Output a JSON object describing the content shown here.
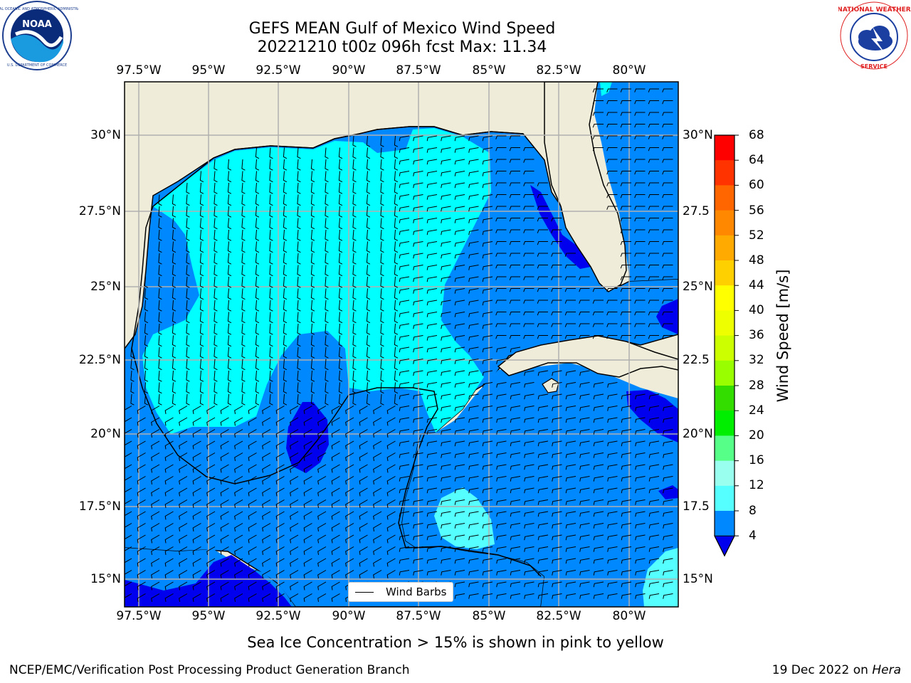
{
  "title_line1": "GEFS MEAN Gulf of Mexico Wind Speed",
  "title_line2": "20221210 t00z 096h fcst   Max: 11.34",
  "lon_labels": [
    "97.5°W",
    "95°W",
    "92.5°W",
    "90°W",
    "87.5°W",
    "85°W",
    "82.5°W",
    "80°W"
  ],
  "lat_labels_left": [
    "30°N",
    "27.5°N",
    "25°N",
    "22.5°N",
    "20°N",
    "17.5°N",
    "15°N"
  ],
  "lat_labels_right": [
    "30°N",
    "27.5",
    "25°N",
    "22.5",
    "20°N",
    "17.5",
    "15°N"
  ],
  "colorbar": {
    "title": "Wind Speed [m/s]",
    "ticks": [
      "68",
      "64",
      "60",
      "56",
      "52",
      "48",
      "44",
      "40",
      "36",
      "32",
      "28",
      "24",
      "20",
      "16",
      "12",
      "8",
      "4"
    ],
    "colors": [
      "#ff0000",
      "#ff3300",
      "#ff6600",
      "#ff8800",
      "#ffaa00",
      "#ffd000",
      "#ffff00",
      "#eeff00",
      "#ccff00",
      "#99ff00",
      "#33dd00",
      "#00ee00",
      "#55ff88",
      "#99ffee",
      "#55ffff",
      "#00ffff",
      "#0088ff"
    ],
    "extend_color": "#0000ee"
  },
  "legend_label": "Wind Barbs",
  "sea_ice_note": "Sea Ice Concentration > 15% is shown in pink to yellow",
  "footer_left": "NCEP/EMC/Verification Post Processing Product Generation Branch",
  "footer_right_date": "19 Dec 2022 on ",
  "footer_right_host": "Hera",
  "colors": {
    "land": "#efedda",
    "ocean_cyan": "#00ffff",
    "ocean_blue": "#0088ff",
    "ocean_deep": "#0000ee",
    "ocean_light": "#55ffff",
    "grid": "#b0b0b0"
  },
  "logos": [
    "noaa-logo",
    "nws-logo"
  ]
}
